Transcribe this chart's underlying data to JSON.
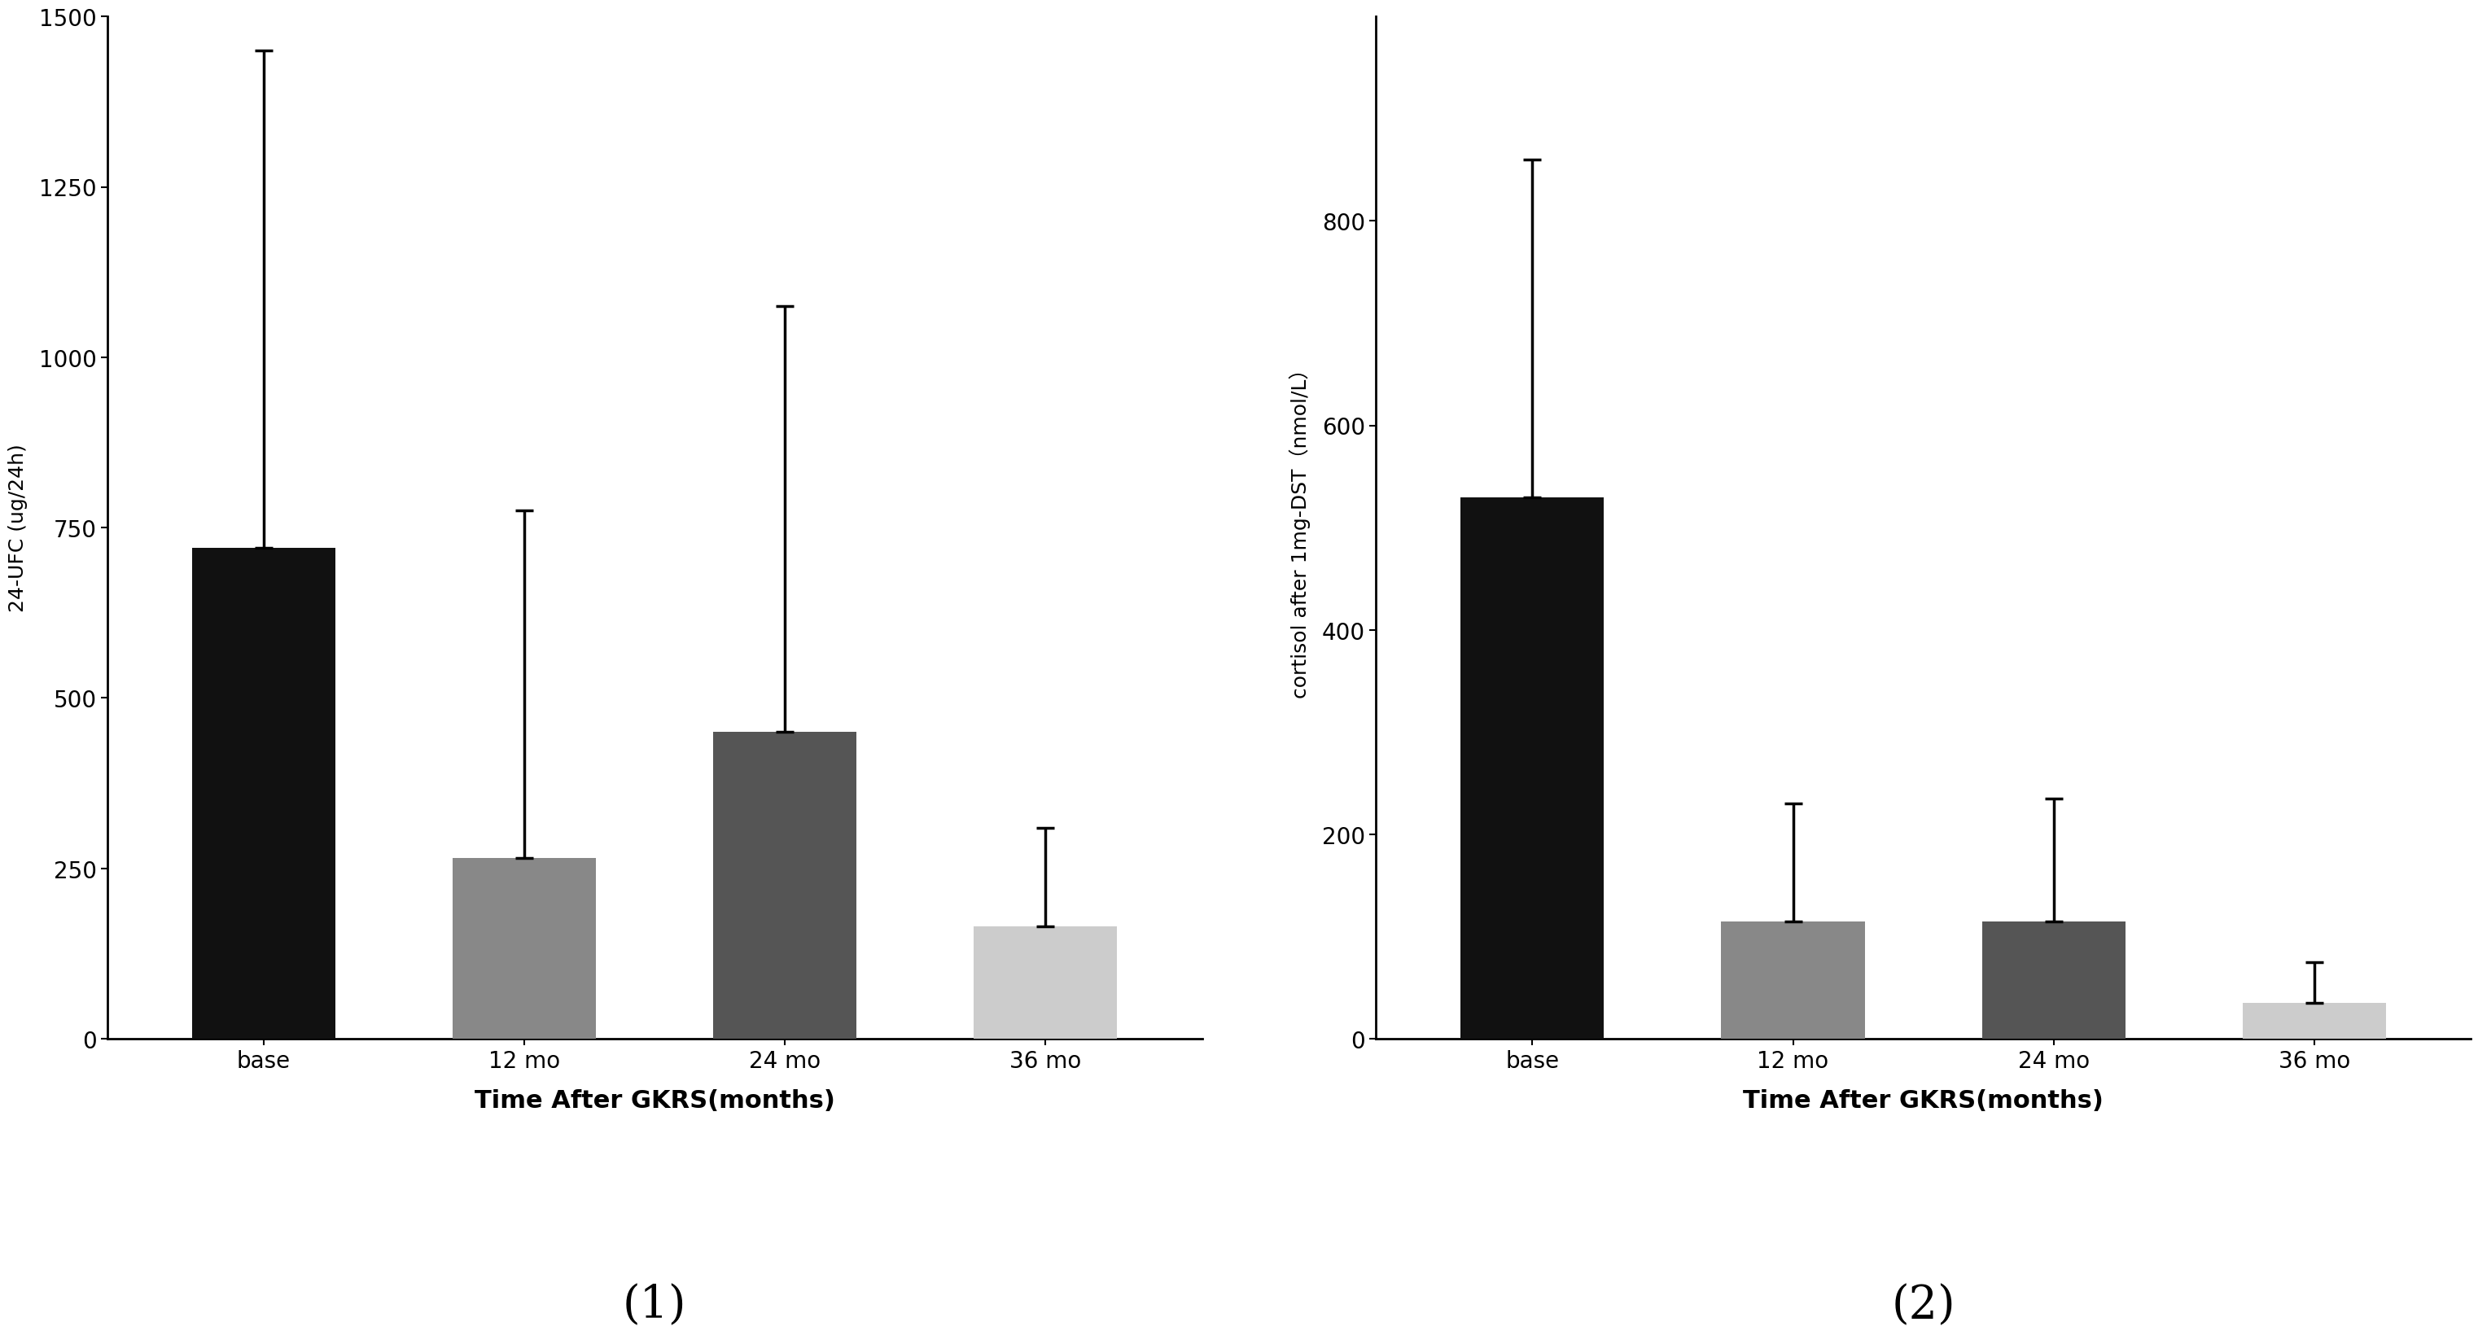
{
  "chart1": {
    "ylabel": "24-UFC (ug/24h)",
    "xlabel": "Time After GKRS(months)",
    "caption": "(1)",
    "categories": [
      "base",
      "12 mo",
      "24 mo",
      "36 mo"
    ],
    "values": [
      720,
      265,
      450,
      165
    ],
    "errors_upper": [
      730,
      510,
      625,
      145
    ],
    "bar_colors": [
      "#111111",
      "#888888",
      "#555555",
      "#cccccc"
    ],
    "ylim": [
      0,
      1500
    ],
    "yticks": [
      0,
      250,
      500,
      750,
      1000,
      1250,
      1500
    ]
  },
  "chart2": {
    "ylabel": "cortisol after 1mg-DST（nmol/L）",
    "xlabel": "Time After GKRS(months)",
    "caption": "(2)",
    "categories": [
      "base",
      "12 mo",
      "24 mo",
      "36 mo"
    ],
    "values": [
      530,
      115,
      115,
      35
    ],
    "errors_upper": [
      330,
      115,
      120,
      40
    ],
    "bar_colors": [
      "#111111",
      "#888888",
      "#555555",
      "#cccccc"
    ],
    "ylim": [
      0,
      1000
    ],
    "yticks": [
      0,
      200,
      400,
      600,
      800
    ]
  },
  "background_color": "#ffffff",
  "bar_width": 0.55,
  "capsize": 8,
  "xlabel_fontsize": 22,
  "ylabel_fontsize": 18,
  "tick_fontsize": 20,
  "caption_fontsize": 40
}
